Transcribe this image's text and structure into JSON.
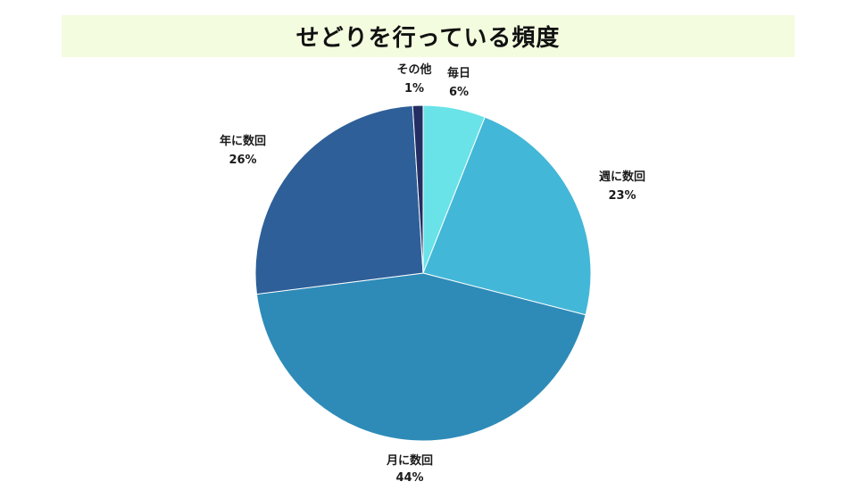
{
  "chart_data": {
    "type": "pie",
    "title": "せどりを行っている頻度",
    "slices": [
      {
        "label": "毎日",
        "value": 6,
        "value_label": "6%",
        "color": "#6ae3e8"
      },
      {
        "label": "週に数回",
        "value": 23,
        "value_label": "23%",
        "color": "#43b7d7"
      },
      {
        "label": "月に数回",
        "value": 44,
        "value_label": "44%",
        "color": "#2e8bb8"
      },
      {
        "label": "年に数回",
        "value": 26,
        "value_label": "26%",
        "color": "#2e5f98"
      },
      {
        "label": "その他",
        "value": 1,
        "value_label": "1%",
        "color": "#242e62"
      }
    ]
  }
}
